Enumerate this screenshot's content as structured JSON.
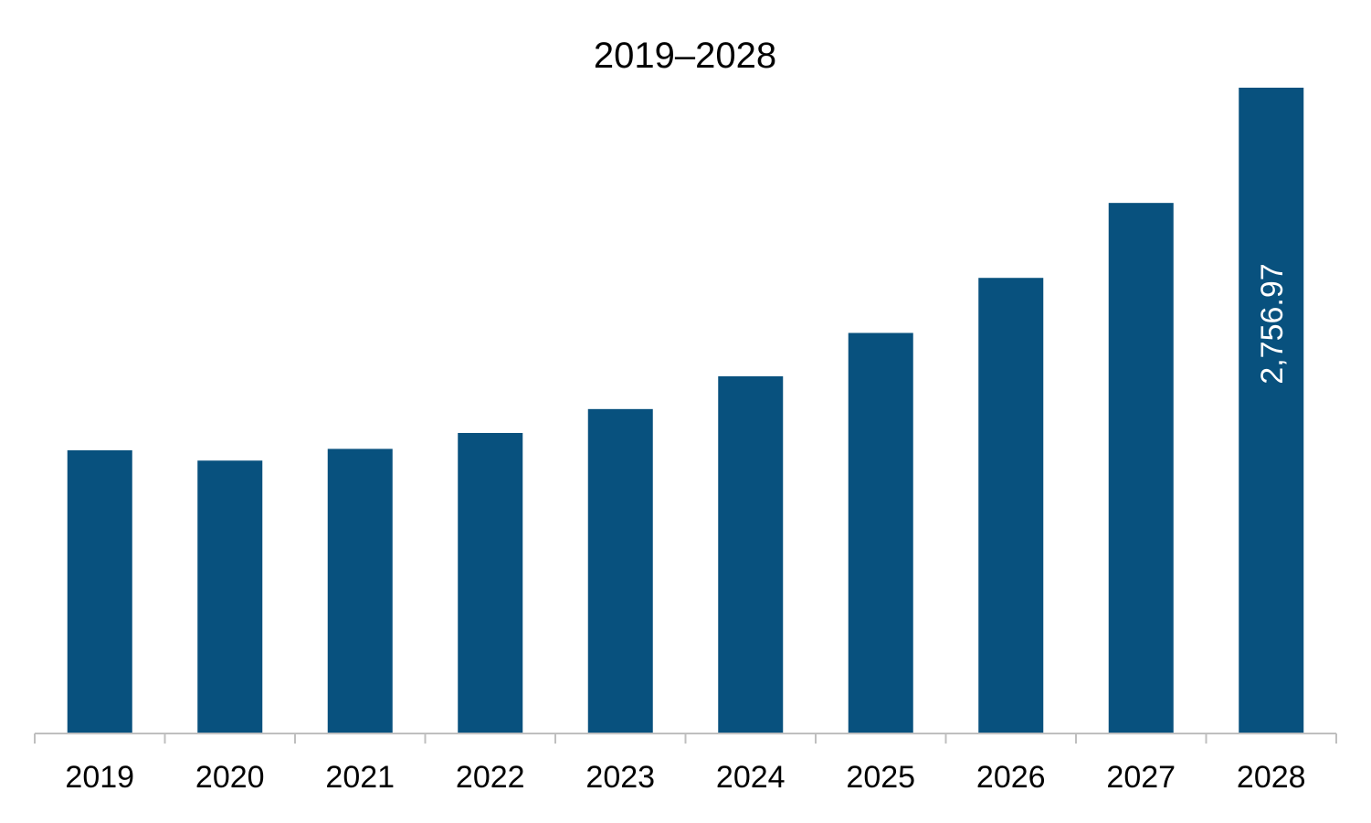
{
  "chart_data": {
    "type": "bar",
    "title": "2019–2028",
    "xlabel": "",
    "ylabel": "",
    "categories": [
      "2019",
      "2020",
      "2021",
      "2022",
      "2023",
      "2024",
      "2025",
      "2026",
      "2027",
      "2028"
    ],
    "values": [
      1209,
      1165,
      1215,
      1283,
      1385,
      1525,
      1710,
      1945,
      2265,
      2756.97
    ],
    "data_labels": [
      "",
      "",
      "",
      "",
      "",
      "",
      "",
      "",
      "",
      "2,756.97"
    ],
    "ylim": [
      0,
      2756.97
    ],
    "grid": false,
    "legend": "none",
    "bar_color": "#08517e",
    "axis_color": "#bfbfbf"
  }
}
